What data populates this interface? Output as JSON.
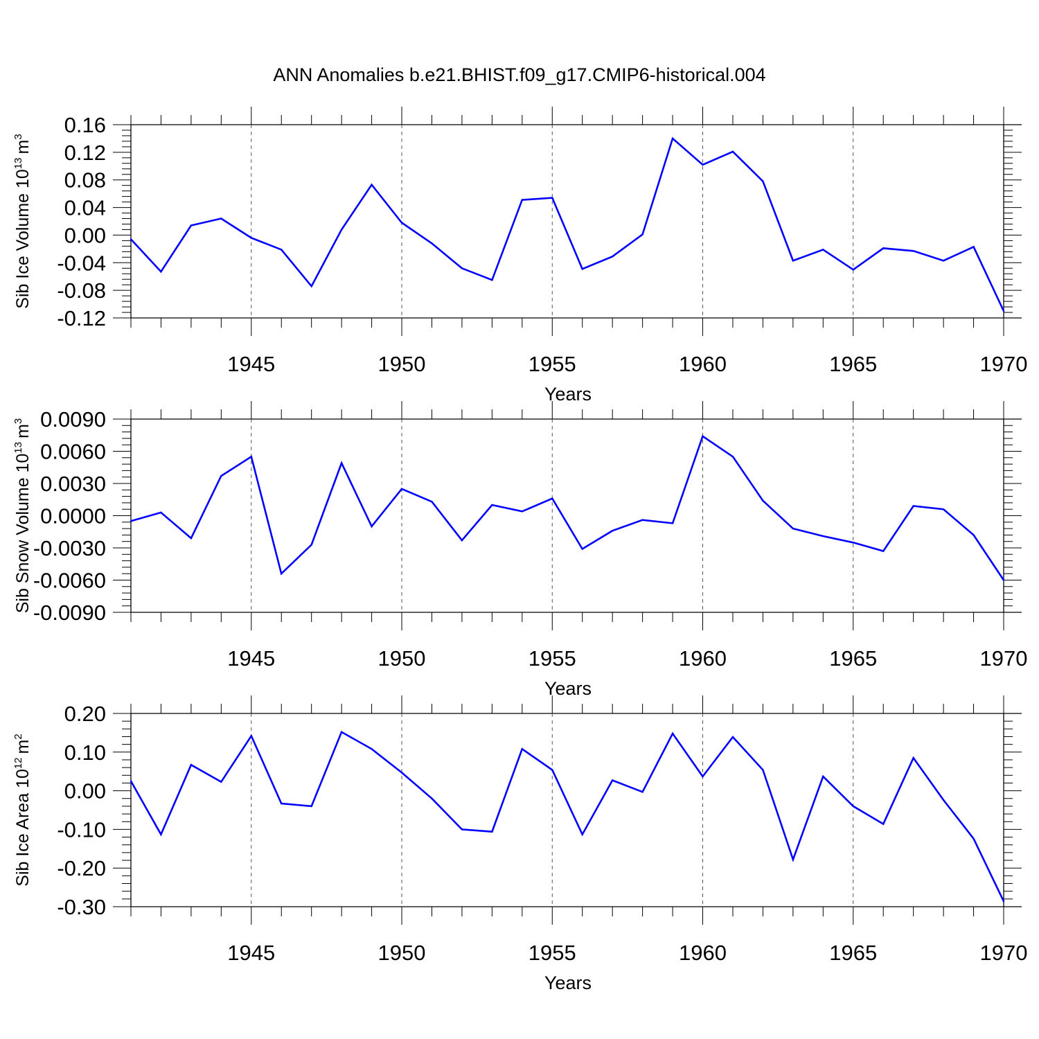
{
  "figure": {
    "title": "ANN Anomalies b.e21.BHIST.f09_g17.CMIP6-historical.004"
  },
  "chart_data": [
    {
      "type": "line",
      "title": "ANN Anomalies b.e21.BHIST.f09_g17.CMIP6-historical.004",
      "xlabel": "Years",
      "ylabel": "Sib Ice Volume 10",
      "ylabel_sup": "13",
      "ylabel_unit": "m",
      "ylabel_unit_sup": "3",
      "xlim": [
        1941,
        1970
      ],
      "ylim": [
        -0.12,
        0.16
      ],
      "yticks": [
        -0.12,
        -0.08,
        -0.04,
        0.0,
        0.04,
        0.08,
        0.12,
        0.16
      ],
      "ytick_labels": [
        "-0.12",
        "-0.08",
        "-0.04",
        "0.00",
        "0.04",
        "0.08",
        "0.12",
        "0.16"
      ],
      "xticks": [
        1945,
        1950,
        1955,
        1960,
        1965,
        1970
      ],
      "xtick_labels": [
        "1945",
        "1950",
        "1955",
        "1960",
        "1965",
        "1970"
      ],
      "vertical_gridlines": [
        1945,
        1950,
        1955,
        1960,
        1965
      ],
      "color": "#0000ff",
      "x": [
        1941,
        1942,
        1943,
        1944,
        1945,
        1946,
        1947,
        1948,
        1949,
        1950,
        1951,
        1952,
        1953,
        1954,
        1955,
        1956,
        1957,
        1958,
        1959,
        1960,
        1961,
        1962,
        1963,
        1964,
        1965,
        1966,
        1967,
        1968,
        1969,
        1970
      ],
      "values": [
        -0.006,
        -0.053,
        0.014,
        0.024,
        -0.004,
        -0.021,
        -0.074,
        0.008,
        0.073,
        0.018,
        -0.012,
        -0.048,
        -0.065,
        0.051,
        0.054,
        -0.049,
        -0.031,
        0.001,
        0.14,
        0.102,
        0.121,
        0.078,
        -0.037,
        -0.021,
        -0.05,
        -0.019,
        -0.023,
        -0.037,
        -0.017,
        -0.11
      ]
    },
    {
      "type": "line",
      "xlabel": "Years",
      "ylabel": "Sib Snow Volume 10",
      "ylabel_sup": "13",
      "ylabel_unit": "m",
      "ylabel_unit_sup": "3",
      "xlim": [
        1941,
        1970
      ],
      "ylim": [
        -0.009,
        0.009
      ],
      "yticks": [
        -0.009,
        -0.006,
        -0.003,
        0.0,
        0.003,
        0.006,
        0.009
      ],
      "ytick_labels": [
        "-0.0090",
        "-0.0060",
        "-0.0030",
        "0.0000",
        "0.0030",
        "0.0060",
        "0.0090"
      ],
      "xticks": [
        1945,
        1950,
        1955,
        1960,
        1965,
        1970
      ],
      "xtick_labels": [
        "1945",
        "1950",
        "1955",
        "1960",
        "1965",
        "1970"
      ],
      "vertical_gridlines": [
        1945,
        1950,
        1955,
        1960,
        1965
      ],
      "color": "#0000ff",
      "x": [
        1941,
        1942,
        1943,
        1944,
        1945,
        1946,
        1947,
        1948,
        1949,
        1950,
        1951,
        1952,
        1953,
        1954,
        1955,
        1956,
        1957,
        1958,
        1959,
        1960,
        1961,
        1962,
        1963,
        1964,
        1965,
        1966,
        1967,
        1968,
        1969,
        1970
      ],
      "values": [
        -0.0005,
        0.0003,
        -0.0021,
        0.0037,
        0.0055,
        -0.0054,
        -0.0027,
        0.0049,
        -0.001,
        0.0025,
        0.0013,
        -0.0023,
        0.001,
        0.0004,
        0.0016,
        -0.0031,
        -0.0014,
        -0.0004,
        -0.0007,
        0.0074,
        0.0055,
        0.0014,
        -0.0012,
        -0.0019,
        -0.0025,
        -0.0033,
        0.0009,
        0.0006,
        -0.0018,
        -0.006
      ]
    },
    {
      "type": "line",
      "xlabel": "Years",
      "ylabel": "Sib Ice Area 10",
      "ylabel_sup": "12",
      "ylabel_unit": "m",
      "ylabel_unit_sup": "2",
      "xlim": [
        1941,
        1970
      ],
      "ylim": [
        -0.3,
        0.2
      ],
      "yticks": [
        -0.3,
        -0.2,
        -0.1,
        0.0,
        0.1,
        0.2
      ],
      "ytick_labels": [
        "-0.30",
        "-0.20",
        "-0.10",
        "0.00",
        "0.10",
        "0.20"
      ],
      "xticks": [
        1945,
        1950,
        1955,
        1960,
        1965,
        1970
      ],
      "xtick_labels": [
        "1945",
        "1950",
        "1955",
        "1960",
        "1965",
        "1970"
      ],
      "vertical_gridlines": [
        1945,
        1950,
        1955,
        1960,
        1965
      ],
      "color": "#0000ff",
      "x": [
        1941,
        1942,
        1943,
        1944,
        1945,
        1946,
        1947,
        1948,
        1949,
        1950,
        1951,
        1952,
        1953,
        1954,
        1955,
        1956,
        1957,
        1958,
        1959,
        1960,
        1961,
        1962,
        1963,
        1964,
        1965,
        1966,
        1967,
        1968,
        1969,
        1970
      ],
      "values": [
        0.025,
        -0.113,
        0.067,
        0.023,
        0.142,
        -0.033,
        -0.04,
        0.152,
        0.108,
        0.047,
        -0.02,
        -0.1,
        -0.106,
        0.108,
        0.054,
        -0.113,
        0.027,
        -0.003,
        0.148,
        0.037,
        0.139,
        0.054,
        -0.178,
        0.037,
        -0.04,
        -0.086,
        0.085,
        -0.024,
        -0.124,
        -0.286
      ]
    }
  ]
}
